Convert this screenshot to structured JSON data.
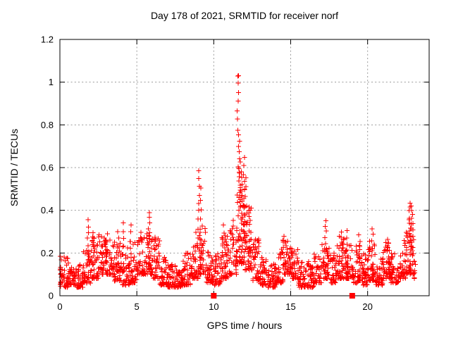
{
  "page": {
    "background": "#ffffff"
  },
  "chart_data": {
    "type": "scatter",
    "title": "Day 178 of 2021, SRMTID for receiver norf",
    "xlabel": "GPS time / hours",
    "ylabel": "SRMTID / TECUs",
    "xlim": [
      0,
      24
    ],
    "ylim": [
      0,
      1.2
    ],
    "xticks": {
      "values": [
        0,
        5,
        10,
        15,
        20
      ],
      "labels": [
        "0",
        "5",
        "10",
        "15",
        "20"
      ]
    },
    "yticks": {
      "values": [
        0,
        0.2,
        0.4,
        0.6,
        0.8,
        1,
        1.2
      ],
      "labels": [
        "0",
        "0.2",
        "0.4",
        "0.6",
        "0.8",
        "1",
        "1.2"
      ]
    },
    "grid": true,
    "legend": "none",
    "marker": "plus",
    "marker_size_px": 7,
    "colors": {
      "points": "#ff0000",
      "grid": "#9a9a9a",
      "axes": "#000000",
      "text": "#000000"
    },
    "zero_squares_x": [
      10,
      19
    ],
    "max_point": {
      "x": 11.6,
      "y": 1.03
    },
    "seed": 178,
    "density_envelope": [
      [
        0.0,
        0.5,
        0.04,
        0.19,
        40
      ],
      [
        0.5,
        1.0,
        0.05,
        0.16,
        40
      ],
      [
        1.0,
        1.5,
        0.04,
        0.15,
        38
      ],
      [
        1.5,
        2.0,
        0.06,
        0.22,
        40
      ],
      [
        2.0,
        2.5,
        0.08,
        0.27,
        44
      ],
      [
        2.5,
        3.0,
        0.1,
        0.29,
        44
      ],
      [
        3.0,
        3.5,
        0.1,
        0.28,
        42
      ],
      [
        3.5,
        4.0,
        0.07,
        0.26,
        40
      ],
      [
        4.0,
        4.5,
        0.05,
        0.24,
        38
      ],
      [
        4.5,
        5.0,
        0.06,
        0.26,
        40
      ],
      [
        5.0,
        5.5,
        0.1,
        0.3,
        42
      ],
      [
        5.5,
        6.0,
        0.1,
        0.32,
        46
      ],
      [
        6.0,
        6.5,
        0.08,
        0.28,
        42
      ],
      [
        6.5,
        7.0,
        0.05,
        0.18,
        40
      ],
      [
        7.0,
        7.5,
        0.04,
        0.15,
        42
      ],
      [
        7.5,
        8.0,
        0.04,
        0.13,
        42
      ],
      [
        8.0,
        8.5,
        0.05,
        0.2,
        40
      ],
      [
        8.5,
        9.0,
        0.08,
        0.3,
        44
      ],
      [
        9.0,
        9.5,
        0.1,
        0.33,
        44
      ],
      [
        9.5,
        10.0,
        0.06,
        0.22,
        38
      ],
      [
        10.0,
        10.5,
        0.05,
        0.22,
        38
      ],
      [
        10.5,
        11.0,
        0.08,
        0.28,
        42
      ],
      [
        11.0,
        11.5,
        0.1,
        0.36,
        46
      ],
      [
        11.5,
        12.0,
        0.15,
        0.5,
        55
      ],
      [
        12.0,
        12.5,
        0.12,
        0.42,
        50
      ],
      [
        12.5,
        13.0,
        0.07,
        0.28,
        42
      ],
      [
        13.0,
        13.5,
        0.05,
        0.18,
        40
      ],
      [
        13.5,
        14.0,
        0.04,
        0.15,
        40
      ],
      [
        14.0,
        14.5,
        0.06,
        0.22,
        42
      ],
      [
        14.5,
        15.0,
        0.1,
        0.27,
        44
      ],
      [
        15.0,
        15.5,
        0.08,
        0.22,
        42
      ],
      [
        15.5,
        16.0,
        0.04,
        0.16,
        40
      ],
      [
        16.0,
        16.5,
        0.04,
        0.16,
        40
      ],
      [
        16.5,
        17.0,
        0.06,
        0.2,
        40
      ],
      [
        17.0,
        17.5,
        0.08,
        0.25,
        42
      ],
      [
        17.5,
        18.0,
        0.06,
        0.2,
        40
      ],
      [
        18.0,
        18.5,
        0.08,
        0.28,
        42
      ],
      [
        18.5,
        19.0,
        0.08,
        0.26,
        40
      ],
      [
        19.0,
        19.5,
        0.06,
        0.24,
        42
      ],
      [
        19.5,
        20.0,
        0.05,
        0.2,
        40
      ],
      [
        20.0,
        20.5,
        0.07,
        0.26,
        42
      ],
      [
        20.5,
        21.0,
        0.05,
        0.18,
        40
      ],
      [
        21.0,
        21.5,
        0.08,
        0.25,
        42
      ],
      [
        21.5,
        22.0,
        0.06,
        0.22,
        40
      ],
      [
        22.0,
        22.5,
        0.08,
        0.28,
        42
      ],
      [
        22.5,
        23.0,
        0.1,
        0.36,
        44
      ],
      [
        23.0,
        23.1,
        0.08,
        0.18,
        8
      ]
    ],
    "spike_columns": [
      [
        1.85,
        0.15,
        0.35,
        8
      ],
      [
        2.1,
        0.15,
        0.3,
        6
      ],
      [
        3.05,
        0.12,
        0.29,
        6
      ],
      [
        3.8,
        0.12,
        0.3,
        6
      ],
      [
        4.12,
        0.12,
        0.34,
        7
      ],
      [
        4.62,
        0.12,
        0.33,
        7
      ],
      [
        5.8,
        0.18,
        0.39,
        9
      ],
      [
        9.02,
        0.28,
        0.585,
        9
      ],
      [
        9.15,
        0.22,
        0.5,
        7
      ],
      [
        10.62,
        0.15,
        0.33,
        7
      ],
      [
        11.57,
        0.78,
        1.035,
        7
      ],
      [
        11.62,
        0.58,
        0.76,
        7
      ],
      [
        11.68,
        0.4,
        0.62,
        12
      ],
      [
        11.78,
        0.28,
        0.58,
        12
      ],
      [
        11.95,
        0.3,
        0.65,
        10
      ],
      [
        12.08,
        0.25,
        0.55,
        8
      ],
      [
        12.3,
        0.18,
        0.42,
        7
      ],
      [
        14.55,
        0.15,
        0.28,
        6
      ],
      [
        17.28,
        0.2,
        0.352,
        7
      ],
      [
        18.32,
        0.15,
        0.3,
        6
      ],
      [
        18.62,
        0.15,
        0.3,
        6
      ],
      [
        19.45,
        0.15,
        0.28,
        6
      ],
      [
        20.3,
        0.12,
        0.32,
        7
      ],
      [
        21.35,
        0.12,
        0.27,
        6
      ],
      [
        22.72,
        0.25,
        0.44,
        9
      ],
      [
        22.82,
        0.2,
        0.42,
        9
      ],
      [
        22.92,
        0.15,
        0.38,
        7
      ]
    ]
  }
}
